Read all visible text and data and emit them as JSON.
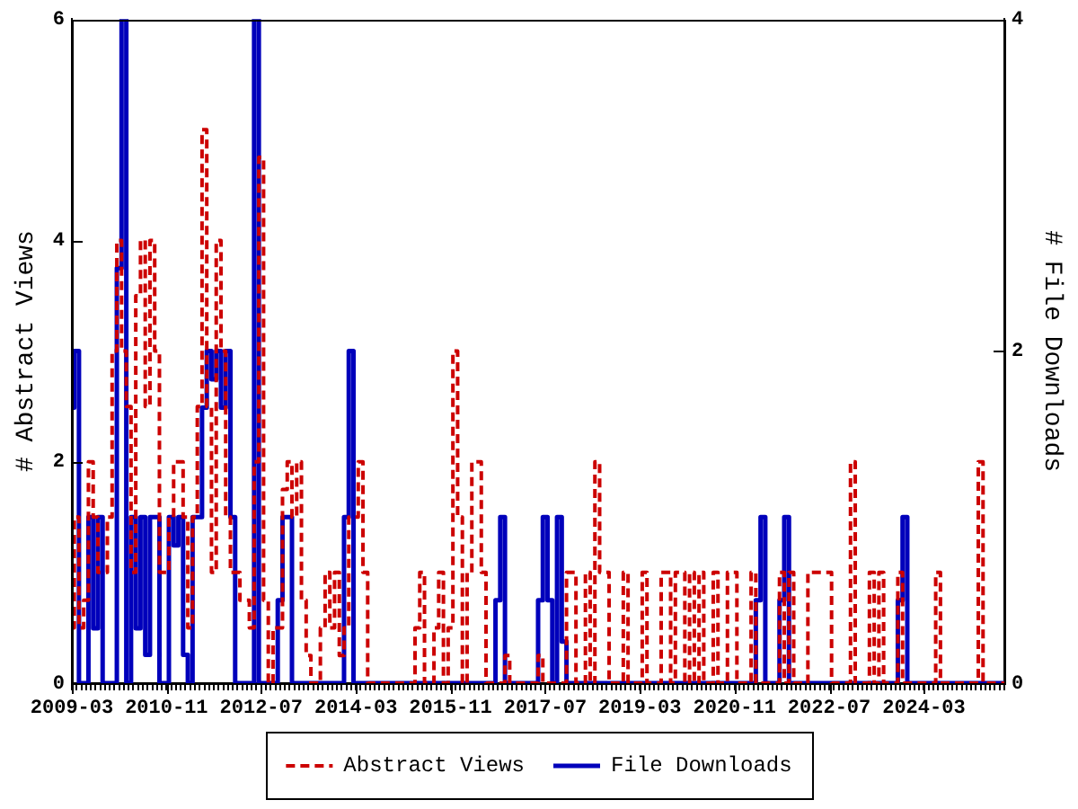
{
  "chart_data": {
    "type": "step",
    "ylabel": "# Abstract Views",
    "y2label": "# File Downloads",
    "legend": "bottom",
    "xlim": [
      "2009-03",
      "2025-08"
    ],
    "ylim": [
      0,
      6
    ],
    "yticks": [
      0,
      2,
      4,
      6
    ],
    "y2lim": [
      0,
      4
    ],
    "y2ticks": [
      0,
      2,
      4
    ],
    "xticks": [
      "2009-03",
      {
        "value": "2009-04",
        "label": null
      },
      {
        "value": "2009-05",
        "label": null
      },
      {
        "value": "2009-06",
        "label": null
      },
      {
        "value": "2009-07",
        "label": null
      },
      {
        "value": "2009-08",
        "label": null
      },
      {
        "value": "2009-09",
        "label": null
      },
      {
        "value": "2009-10",
        "label": null
      },
      {
        "value": "2009-11",
        "label": null
      },
      {
        "value": "2009-12",
        "label": null
      },
      {
        "value": "2010-01",
        "label": null
      },
      {
        "value": "2010-02",
        "label": null
      },
      {
        "value": "2010-03",
        "label": null
      },
      {
        "value": "2010-04",
        "label": null
      },
      {
        "value": "2010-05",
        "label": null
      },
      {
        "value": "2010-06",
        "label": null
      },
      {
        "value": "2010-07",
        "label": null
      },
      {
        "value": "2010-08",
        "label": null
      },
      {
        "value": "2010-09",
        "label": null
      },
      {
        "value": "2010-10",
        "label": null
      },
      "2010-11",
      {
        "value": "2010-12",
        "label": null
      },
      {
        "value": "2011-01",
        "label": null
      },
      {
        "value": "2011-02",
        "label": null
      },
      {
        "value": "2011-03",
        "label": null
      },
      {
        "value": "2011-04",
        "label": null
      },
      {
        "value": "2011-05",
        "label": null
      },
      {
        "value": "2011-06",
        "label": null
      },
      {
        "value": "2011-07",
        "label": null
      },
      {
        "value": "2011-08",
        "label": null
      },
      {
        "value": "2011-09",
        "label": null
      },
      {
        "value": "2011-10",
        "label": null
      },
      {
        "value": "2011-11",
        "label": null
      },
      {
        "value": "2011-12",
        "label": null
      },
      {
        "value": "2012-01",
        "label": null
      },
      {
        "value": "2012-02",
        "label": null
      },
      {
        "value": "2012-03",
        "label": null
      },
      {
        "value": "2012-04",
        "label": null
      },
      {
        "value": "2012-05",
        "label": null
      },
      {
        "value": "2012-06",
        "label": null
      },
      "2012-07",
      {
        "value": "2012-08",
        "label": null
      },
      {
        "value": "2012-09",
        "label": null
      },
      {
        "value": "2012-10",
        "label": null
      },
      {
        "value": "2012-11",
        "label": null
      },
      {
        "value": "2012-12",
        "label": null
      },
      {
        "value": "2013-01",
        "label": null
      },
      {
        "value": "2013-02",
        "label": null
      },
      {
        "value": "2013-03",
        "label": null
      },
      {
        "value": "2013-04",
        "label": null
      },
      {
        "value": "2013-05",
        "label": null
      },
      {
        "value": "2013-06",
        "label": null
      },
      {
        "value": "2013-07",
        "label": null
      },
      {
        "value": "2013-08",
        "label": null
      },
      {
        "value": "2013-09",
        "label": null
      },
      {
        "value": "2013-10",
        "label": null
      },
      {
        "value": "2013-11",
        "label": null
      },
      {
        "value": "2013-12",
        "label": null
      },
      {
        "value": "2014-01",
        "label": null
      },
      {
        "value": "2014-02",
        "label": null
      },
      "2014-03",
      {
        "value": "2014-04",
        "label": null
      },
      {
        "value": "2014-05",
        "label": null
      },
      {
        "value": "2014-06",
        "label": null
      },
      {
        "value": "2014-07",
        "label": null
      },
      {
        "value": "2014-08",
        "label": null
      },
      {
        "value": "2014-09",
        "label": null
      },
      {
        "value": "2014-10",
        "label": null
      },
      {
        "value": "2014-11",
        "label": null
      },
      {
        "value": "2014-12",
        "label": null
      },
      {
        "value": "2015-01",
        "label": null
      },
      {
        "value": "2015-02",
        "label": null
      },
      {
        "value": "2015-03",
        "label": null
      },
      {
        "value": "2015-04",
        "label": null
      },
      {
        "value": "2015-05",
        "label": null
      },
      {
        "value": "2015-06",
        "label": null
      },
      {
        "value": "2015-07",
        "label": null
      },
      {
        "value": "2015-08",
        "label": null
      },
      {
        "value": "2015-09",
        "label": null
      },
      {
        "value": "2015-10",
        "label": null
      },
      "2015-11",
      {
        "value": "2015-12",
        "label": null
      },
      {
        "value": "2016-01",
        "label": null
      },
      {
        "value": "2016-02",
        "label": null
      },
      {
        "value": "2016-03",
        "label": null
      },
      {
        "value": "2016-04",
        "label": null
      },
      {
        "value": "2016-05",
        "label": null
      },
      {
        "value": "2016-06",
        "label": null
      },
      {
        "value": "2016-07",
        "label": null
      },
      {
        "value": "2016-08",
        "label": null
      },
      {
        "value": "2016-09",
        "label": null
      },
      {
        "value": "2016-10",
        "label": null
      },
      {
        "value": "2016-11",
        "label": null
      },
      {
        "value": "2016-12",
        "label": null
      },
      {
        "value": "2017-01",
        "label": null
      },
      {
        "value": "2017-02",
        "label": null
      },
      {
        "value": "2017-03",
        "label": null
      },
      {
        "value": "2017-04",
        "label": null
      },
      {
        "value": "2017-05",
        "label": null
      },
      {
        "value": "2017-06",
        "label": null
      },
      "2017-07",
      {
        "value": "2017-08",
        "label": null
      },
      {
        "value": "2017-09",
        "label": null
      },
      {
        "value": "2017-10",
        "label": null
      },
      {
        "value": "2017-11",
        "label": null
      },
      {
        "value": "2017-12",
        "label": null
      },
      {
        "value": "2018-01",
        "label": null
      },
      {
        "value": "2018-02",
        "label": null
      },
      {
        "value": "2018-03",
        "label": null
      },
      {
        "value": "2018-04",
        "label": null
      },
      {
        "value": "2018-05",
        "label": null
      },
      {
        "value": "2018-06",
        "label": null
      },
      {
        "value": "2018-07",
        "label": null
      },
      {
        "value": "2018-08",
        "label": null
      },
      {
        "value": "2018-09",
        "label": null
      },
      {
        "value": "2018-10",
        "label": null
      },
      {
        "value": "2018-11",
        "label": null
      },
      {
        "value": "2018-12",
        "label": null
      },
      {
        "value": "2019-01",
        "label": null
      },
      {
        "value": "2019-02",
        "label": null
      },
      "2019-03",
      {
        "value": "2019-04",
        "label": null
      },
      {
        "value": "2019-05",
        "label": null
      },
      {
        "value": "2019-06",
        "label": null
      },
      {
        "value": "2019-07",
        "label": null
      },
      {
        "value": "2019-08",
        "label": null
      },
      {
        "value": "2019-09",
        "label": null
      },
      {
        "value": "2019-10",
        "label": null
      },
      {
        "value": "2019-11",
        "label": null
      },
      {
        "value": "2019-12",
        "label": null
      },
      {
        "value": "2020-01",
        "label": null
      },
      {
        "value": "2020-02",
        "label": null
      },
      {
        "value": "2020-03",
        "label": null
      },
      {
        "value": "2020-04",
        "label": null
      },
      {
        "value": "2020-05",
        "label": null
      },
      {
        "value": "2020-06",
        "label": null
      },
      {
        "value": "2020-07",
        "label": null
      },
      {
        "value": "2020-08",
        "label": null
      },
      {
        "value": "2020-09",
        "label": null
      },
      {
        "value": "2020-10",
        "label": null
      },
      "2020-11",
      {
        "value": "2020-12",
        "label": null
      },
      {
        "value": "2021-01",
        "label": null
      },
      {
        "value": "2021-02",
        "label": null
      },
      {
        "value": "2021-03",
        "label": null
      },
      {
        "value": "2021-04",
        "label": null
      },
      {
        "value": "2021-05",
        "label": null
      },
      {
        "value": "2021-06",
        "label": null
      },
      {
        "value": "2021-07",
        "label": null
      },
      {
        "value": "2021-08",
        "label": null
      },
      {
        "value": "2021-09",
        "label": null
      },
      {
        "value": "2021-10",
        "label": null
      },
      {
        "value": "2021-11",
        "label": null
      },
      {
        "value": "2021-12",
        "label": null
      },
      {
        "value": "2022-01",
        "label": null
      },
      {
        "value": "2022-02",
        "label": null
      },
      {
        "value": "2022-03",
        "label": null
      },
      {
        "value": "2022-04",
        "label": null
      },
      {
        "value": "2022-05",
        "label": null
      },
      {
        "value": "2022-06",
        "label": null
      },
      "2022-07",
      {
        "value": "2022-08",
        "label": null
      },
      {
        "value": "2022-09",
        "label": null
      },
      {
        "value": "2022-10",
        "label": null
      },
      {
        "value": "2022-11",
        "label": null
      },
      {
        "value": "2022-12",
        "label": null
      },
      {
        "value": "2023-01",
        "label": null
      },
      {
        "value": "2023-02",
        "label": null
      },
      {
        "value": "2023-03",
        "label": null
      },
      {
        "value": "2023-04",
        "label": null
      },
      {
        "value": "2023-05",
        "label": null
      },
      {
        "value": "2023-06",
        "label": null
      },
      {
        "value": "2023-07",
        "label": null
      },
      {
        "value": "2023-08",
        "label": null
      },
      {
        "value": "2023-09",
        "label": null
      },
      {
        "value": "2023-10",
        "label": null
      },
      {
        "value": "2023-11",
        "label": null
      },
      {
        "value": "2023-12",
        "label": null
      },
      {
        "value": "2024-01",
        "label": null
      },
      {
        "value": "2024-02",
        "label": null
      },
      "2024-03",
      {
        "value": "2024-04",
        "label": null
      },
      {
        "value": "2024-05",
        "label": null
      },
      {
        "value": "2024-06",
        "label": null
      },
      {
        "value": "2024-07",
        "label": null
      },
      {
        "value": "2024-08",
        "label": null
      },
      {
        "value": "2024-09",
        "label": null
      },
      {
        "value": "2024-10",
        "label": null
      },
      {
        "value": "2024-11",
        "label": null
      },
      {
        "value": "2024-12",
        "label": null
      },
      {
        "value": "2025-01",
        "label": null
      },
      {
        "value": "2025-02",
        "label": null
      },
      {
        "value": "2025-03",
        "label": null
      },
      {
        "value": "2025-04",
        "label": null
      },
      {
        "value": "2025-05",
        "label": null
      },
      {
        "value": "2025-06",
        "label": null
      },
      {
        "value": "2025-07",
        "label": null
      },
      {
        "value": "2025-08",
        "label": null
      }
    ],
    "x": [
      "2009-03",
      "2009-04",
      "2009-05",
      "2009-06",
      "2009-07",
      "2009-08",
      "2009-09",
      "2009-10",
      "2009-11",
      "2009-12",
      "2010-01",
      "2010-02",
      "2010-03",
      "2010-04",
      "2010-05",
      "2010-06",
      "2010-07",
      "2010-08",
      "2010-09",
      "2010-10",
      "2010-11",
      "2010-12",
      "2011-01",
      "2011-02",
      "2011-03",
      "2011-04",
      "2011-05",
      "2011-06",
      "2011-07",
      "2011-08",
      "2011-09",
      "2011-10",
      "2011-11",
      "2011-12",
      "2012-01",
      "2012-02",
      "2012-03",
      "2012-04",
      "2012-05",
      "2012-06",
      "2012-07",
      "2012-08",
      "2012-09",
      "2012-10",
      "2012-11",
      "2012-12",
      "2013-01",
      "2013-02",
      "2013-03",
      "2013-04",
      "2013-05",
      "2013-06",
      "2013-07",
      "2013-08",
      "2013-09",
      "2013-10",
      "2013-11",
      "2013-12",
      "2014-01",
      "2014-02",
      "2014-03",
      "2014-04",
      "2014-05",
      "2014-06",
      "2014-07",
      "2014-08",
      "2014-09",
      "2014-10",
      "2014-11",
      "2014-12",
      "2015-01",
      "2015-02",
      "2015-03",
      "2015-04",
      "2015-05",
      "2015-06",
      "2015-07",
      "2015-08",
      "2015-09",
      "2015-10",
      "2015-11",
      "2015-12",
      "2016-01",
      "2016-02",
      "2016-03",
      "2016-04",
      "2016-05",
      "2016-06",
      "2016-07",
      "2016-08",
      "2016-09",
      "2016-10",
      "2016-11",
      "2016-12",
      "2017-01",
      "2017-02",
      "2017-03",
      "2017-04",
      "2017-05",
      "2017-06",
      "2017-07",
      "2017-08",
      "2017-09",
      "2017-10",
      "2017-11",
      "2017-12",
      "2018-01",
      "2018-02",
      "2018-03",
      "2018-04",
      "2018-05",
      "2018-06",
      "2018-07",
      "2018-08",
      "2018-09",
      "2018-10",
      "2018-11",
      "2018-12",
      "2019-01",
      "2019-02",
      "2019-03",
      "2019-04",
      "2019-05",
      "2019-06",
      "2019-07",
      "2019-08",
      "2019-09",
      "2019-10",
      "2019-11",
      "2019-12",
      "2020-01",
      "2020-02",
      "2020-03",
      "2020-04",
      "2020-05",
      "2020-06",
      "2020-07",
      "2020-08",
      "2020-09",
      "2020-10",
      "2020-11",
      "2020-12",
      "2021-01",
      "2021-02",
      "2021-03",
      "2021-04",
      "2021-05",
      "2021-06",
      "2021-07",
      "2021-08",
      "2021-09",
      "2021-10",
      "2021-11",
      "2021-12",
      "2022-01",
      "2022-02",
      "2022-03",
      "2022-04",
      "2022-05",
      "2022-06",
      "2022-07",
      "2022-08",
      "2022-09",
      "2022-10",
      "2022-11",
      "2022-12",
      "2023-01",
      "2023-02",
      "2023-03",
      "2023-04",
      "2023-05",
      "2023-06",
      "2023-07",
      "2023-08",
      "2023-09",
      "2023-10",
      "2023-11",
      "2023-12",
      "2024-01",
      "2024-02",
      "2024-03",
      "2024-04",
      "2024-05",
      "2024-06",
      "2024-07",
      "2024-08",
      "2024-09",
      "2024-10",
      "2024-11",
      "2024-12",
      "2025-01",
      "2025-02",
      "2025-03",
      "2025-04",
      "2025-05",
      "2025-06",
      "2025-07",
      "2025-08"
    ],
    "series": [
      {
        "name": "Abstract Views",
        "color": "#cc0000",
        "line_style": "dashed",
        "values": [
          0.5,
          1.5,
          0.5,
          0.75,
          2,
          1.5,
          1,
          1,
          1.5,
          3,
          4,
          3,
          2.5,
          1,
          3.5,
          4,
          2.5,
          4,
          3,
          1,
          1,
          1.5,
          2,
          2,
          1.5,
          0.5,
          1.5,
          2.5,
          5,
          2.5,
          1,
          4,
          3,
          1.5,
          1,
          1,
          0.75,
          0.75,
          0.5,
          2,
          4.75,
          0.75,
          0,
          0.5,
          0.5,
          1.75,
          2,
          1.5,
          2,
          0.75,
          0.25,
          0,
          0,
          0.5,
          1,
          0.5,
          1,
          0.25,
          0.5,
          1.5,
          1.5,
          2,
          1,
          0,
          0,
          0,
          0,
          0,
          0,
          0,
          0,
          0,
          0,
          0.5,
          1,
          0,
          0,
          0.5,
          1,
          0,
          0.5,
          3,
          1.5,
          0,
          1,
          2,
          2,
          1,
          0,
          0,
          0,
          0,
          0.25,
          0,
          0,
          0,
          0,
          0,
          0,
          0.25,
          0,
          0,
          0,
          0,
          0,
          1,
          1,
          0,
          0,
          1,
          0,
          2,
          1,
          1,
          0,
          0,
          0,
          1,
          0,
          0,
          0,
          1,
          0,
          0,
          0,
          1,
          1,
          0,
          1,
          1,
          0,
          1,
          0,
          1,
          0,
          0,
          1,
          0,
          0,
          1,
          1,
          0,
          0,
          0,
          1,
          0,
          0,
          0,
          0,
          0,
          1,
          0,
          1,
          0,
          0,
          0,
          1,
          1,
          1,
          1,
          1,
          0,
          0,
          0,
          0,
          2,
          0,
          0,
          0,
          1,
          0,
          1,
          0,
          0,
          0,
          1,
          0,
          0,
          0,
          0,
          0,
          0,
          0,
          1,
          0,
          0,
          0,
          0,
          0,
          0,
          0,
          0,
          2,
          0,
          0,
          0,
          0,
          0
        ]
      },
      {
        "name": "File Downloads",
        "color": "#0000bb",
        "axis": "y2",
        "values": [
          1.66,
          2,
          0,
          0,
          1,
          0.33,
          1,
          0,
          0,
          0,
          2.5,
          4,
          0,
          1,
          0.33,
          1,
          0.17,
          1,
          1,
          0,
          0,
          1,
          0.83,
          1,
          0.17,
          0,
          1,
          1,
          1.66,
          2,
          1.83,
          2,
          1.66,
          2,
          1,
          0,
          0,
          0,
          0,
          4,
          0,
          0,
          0,
          0,
          0.5,
          1,
          1,
          0,
          0,
          0,
          0,
          0,
          0,
          0,
          0,
          0,
          0,
          0,
          1,
          2,
          0,
          0,
          0,
          0,
          0,
          0,
          0,
          0,
          0,
          0,
          0,
          0,
          0,
          0,
          0,
          0,
          0,
          0,
          0,
          0,
          0,
          0,
          0,
          0,
          0,
          0,
          0,
          0,
          0,
          0,
          0.5,
          1,
          0,
          0,
          0,
          0,
          0,
          0,
          0,
          0.5,
          1,
          0.5,
          0,
          1,
          0.25,
          0,
          0,
          0,
          0,
          0,
          0,
          0,
          0,
          0,
          0,
          0,
          0,
          0,
          0,
          0,
          0,
          0,
          0,
          0,
          0,
          0,
          0,
          0,
          0,
          0,
          0,
          0,
          0,
          0,
          0,
          0,
          0,
          0,
          0,
          0,
          0,
          0,
          0,
          0,
          0,
          0.5,
          1,
          0,
          0,
          0,
          0.5,
          1,
          0,
          0,
          0,
          0,
          0,
          0,
          0,
          0,
          0,
          0,
          0,
          0,
          0,
          0,
          0,
          0,
          0,
          0,
          0,
          0,
          0,
          0,
          0,
          0.5,
          1,
          0,
          0,
          0,
          0,
          0,
          0,
          0,
          0,
          0,
          0,
          0,
          0,
          0,
          0,
          0,
          0,
          0,
          0,
          0,
          0,
          0
        ]
      }
    ]
  }
}
